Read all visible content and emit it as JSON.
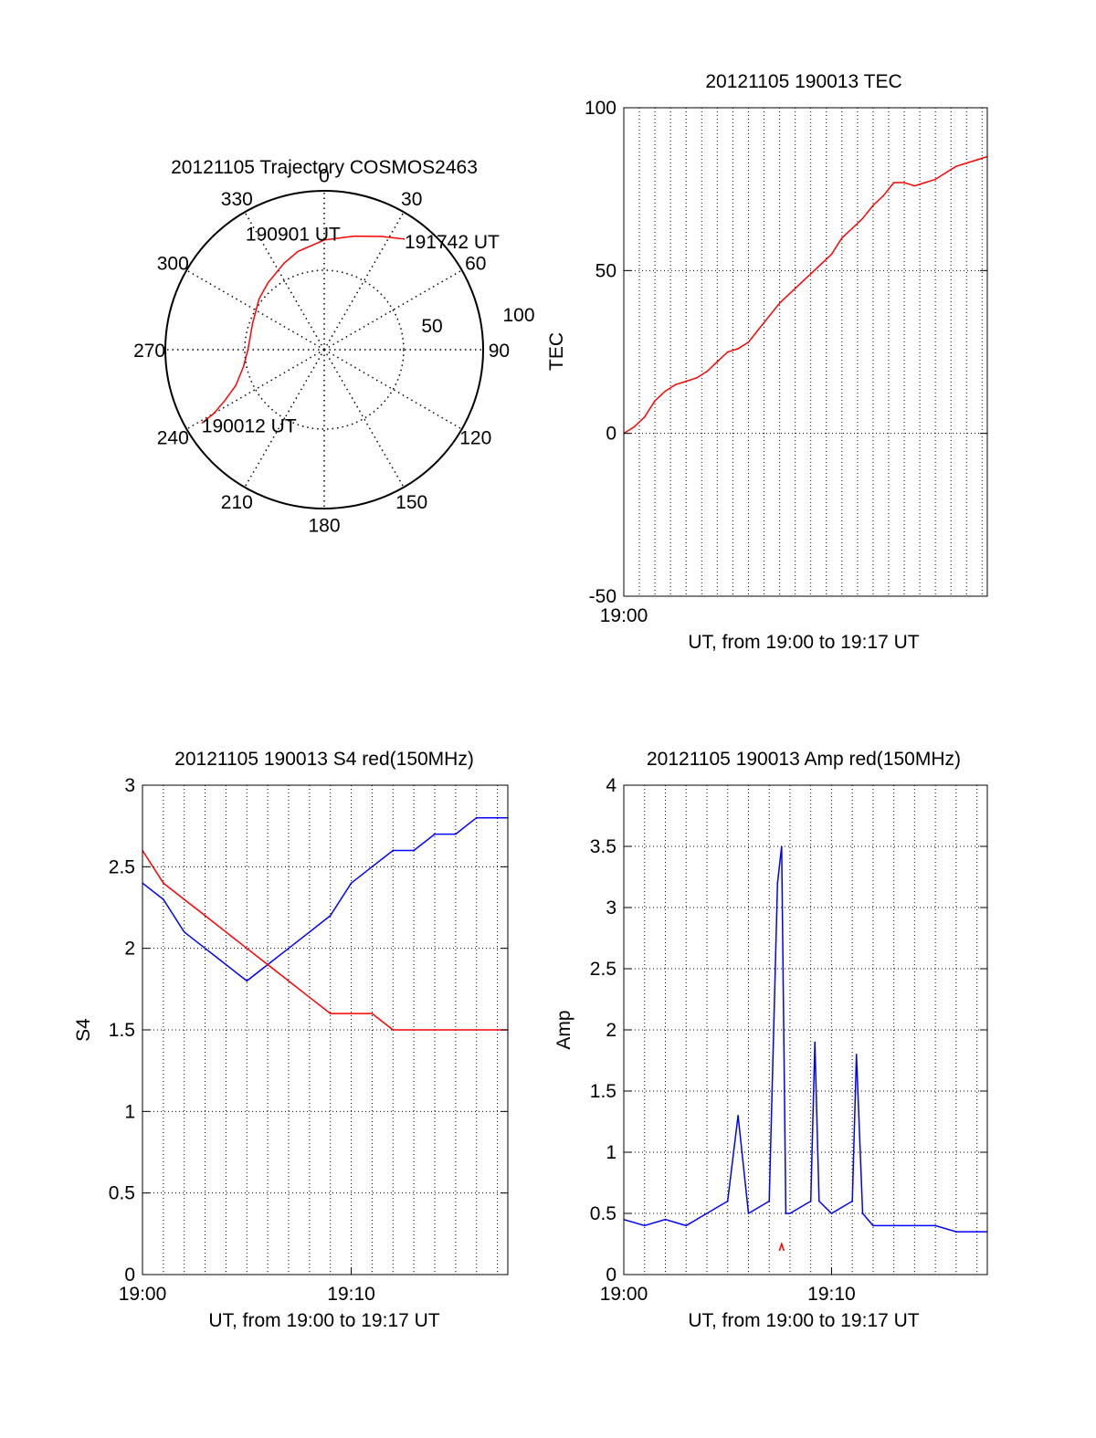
{
  "colors": {
    "red": "#ff0000",
    "blue": "#0000ff",
    "axis": "#000000"
  },
  "chart_data": [
    {
      "id": "polar",
      "type": "polar-trajectory",
      "title": "20121105 Trajectory COSMOS2463",
      "azimuth_labels": [
        "0",
        "30",
        "60",
        "90",
        "120",
        "150",
        "180",
        "210",
        "240",
        "270",
        "300",
        "330"
      ],
      "radius_labels": [
        "50",
        "100"
      ],
      "rlim": [
        0,
        100
      ],
      "track": [
        {
          "az": 239,
          "r": 90
        },
        {
          "az": 240,
          "r": 80
        },
        {
          "az": 243,
          "r": 70
        },
        {
          "az": 248,
          "r": 60
        },
        {
          "az": 258,
          "r": 52
        },
        {
          "az": 270,
          "r": 48
        },
        {
          "az": 290,
          "r": 48
        },
        {
          "az": 308,
          "r": 52
        },
        {
          "az": 320,
          "r": 55
        },
        {
          "az": 335,
          "r": 60
        },
        {
          "az": 345,
          "r": 64
        },
        {
          "az": 360,
          "r": 69
        },
        {
          "az": 15,
          "r": 74
        },
        {
          "az": 27,
          "r": 80
        },
        {
          "az": 36,
          "r": 86
        }
      ],
      "annotations": [
        {
          "text": "190012 UT",
          "az": 239,
          "r": 90
        },
        {
          "text": "190901 UT",
          "az": 338,
          "r": 40
        },
        {
          "text": "191742 UT",
          "az": 36,
          "r": 86
        }
      ]
    },
    {
      "id": "tec",
      "type": "line",
      "title": "20121105 190013 TEC",
      "xlabel": "UT, from 19:00 to 19:17 UT",
      "ylabel": "TEC",
      "xlim": [
        0,
        17.5
      ],
      "ylim": [
        -50,
        100
      ],
      "xticks": [
        {
          "v": 0,
          "label": "19:00"
        }
      ],
      "yticks": [
        {
          "v": -50,
          "label": "-50"
        },
        {
          "v": 0,
          "label": "0"
        },
        {
          "v": 50,
          "label": "50"
        },
        {
          "v": 100,
          "label": "100"
        }
      ],
      "x_grid_step_min": 0.75,
      "series": [
        {
          "color": "red",
          "x": [
            0,
            0.5,
            1,
            1.5,
            2,
            2.5,
            3,
            3.5,
            4,
            4.5,
            5,
            5.5,
            6,
            6.5,
            7,
            7.5,
            8,
            8.5,
            9,
            9.5,
            10,
            10.5,
            11,
            11.5,
            12,
            12.5,
            13,
            13.5,
            14,
            14.5,
            15,
            15.5,
            16,
            16.5,
            17,
            17.5
          ],
          "y": [
            0,
            2,
            5,
            10,
            13,
            15,
            16,
            17,
            19,
            22,
            25,
            26,
            28,
            32,
            36,
            40,
            43,
            46,
            49,
            52,
            55,
            60,
            63,
            66,
            70,
            73,
            77,
            77,
            76,
            77,
            78,
            80,
            82,
            83,
            84,
            85
          ]
        }
      ]
    },
    {
      "id": "s4",
      "type": "line",
      "title": "20121105 190013 S4 red(150MHz)",
      "xlabel": "UT, from 19:00 to 19:17 UT",
      "ylabel": "S4",
      "xlim": [
        0,
        17.5
      ],
      "ylim": [
        0,
        3
      ],
      "xticks": [
        {
          "v": 0,
          "label": "19:00"
        },
        {
          "v": 10,
          "label": "19:10"
        }
      ],
      "yticks": [
        {
          "v": 0,
          "label": "0"
        },
        {
          "v": 0.5,
          "label": "0.5"
        },
        {
          "v": 1,
          "label": "1"
        },
        {
          "v": 1.5,
          "label": "1.5"
        },
        {
          "v": 2,
          "label": "2"
        },
        {
          "v": 2.5,
          "label": "2.5"
        },
        {
          "v": 3,
          "label": "3"
        }
      ],
      "x_grid_step_min": 1,
      "series": [
        {
          "color": "blue",
          "x": [
            0,
            1,
            2,
            3,
            4,
            5,
            6,
            7,
            8,
            9,
            10,
            11,
            12,
            13,
            14,
            15,
            16,
            17,
            17.5
          ],
          "y": [
            2.4,
            2.3,
            2.1,
            2.0,
            1.9,
            1.8,
            1.9,
            2.0,
            2.1,
            2.2,
            2.4,
            2.5,
            2.6,
            2.6,
            2.7,
            2.7,
            2.8,
            2.8,
            2.8
          ]
        },
        {
          "color": "red",
          "x": [
            0,
            1,
            2,
            3,
            4,
            5,
            6,
            7,
            8,
            9,
            10,
            11,
            12,
            13,
            14,
            15,
            16,
            17,
            17.5
          ],
          "y": [
            2.6,
            2.4,
            2.3,
            2.2,
            2.1,
            2.0,
            1.9,
            1.8,
            1.7,
            1.6,
            1.6,
            1.6,
            1.5,
            1.5,
            1.5,
            1.5,
            1.5,
            1.5,
            1.5
          ]
        }
      ]
    },
    {
      "id": "amp",
      "type": "line",
      "title": "20121105 190013 Amp red(150MHz)",
      "xlabel": "UT, from 19:00 to 19:17 UT",
      "ylabel": "Amp",
      "xlim": [
        0,
        17.5
      ],
      "ylim": [
        0,
        4
      ],
      "xticks": [
        {
          "v": 0,
          "label": "19:00"
        },
        {
          "v": 10,
          "label": "19:10"
        }
      ],
      "yticks": [
        {
          "v": 0,
          "label": "0"
        },
        {
          "v": 0.5,
          "label": "0.5"
        },
        {
          "v": 1,
          "label": "1"
        },
        {
          "v": 1.5,
          "label": "1.5"
        },
        {
          "v": 2,
          "label": "2"
        },
        {
          "v": 2.5,
          "label": "2.5"
        },
        {
          "v": 3,
          "label": "3"
        },
        {
          "v": 3.5,
          "label": "3.5"
        },
        {
          "v": 4,
          "label": "4"
        }
      ],
      "x_grid_step_min": 1,
      "series": [
        {
          "color": "blue",
          "x": [
            0,
            1,
            2,
            3,
            4,
            5,
            5.5,
            6,
            7,
            7.4,
            7.6,
            7.8,
            8,
            9,
            9.2,
            9.4,
            10,
            11,
            11.2,
            11.5,
            12,
            13,
            14,
            15,
            16,
            17,
            17.5
          ],
          "y": [
            0.45,
            0.4,
            0.45,
            0.4,
            0.5,
            0.6,
            1.3,
            0.5,
            0.6,
            3.2,
            3.5,
            0.5,
            0.5,
            0.6,
            1.9,
            0.6,
            0.5,
            0.6,
            1.8,
            0.5,
            0.4,
            0.4,
            0.4,
            0.4,
            0.35,
            0.35,
            0.35
          ]
        },
        {
          "color": "red",
          "x": [
            7.5,
            7.6,
            7.7
          ],
          "y": [
            0.2,
            0.25,
            0.2
          ]
        }
      ]
    }
  ]
}
